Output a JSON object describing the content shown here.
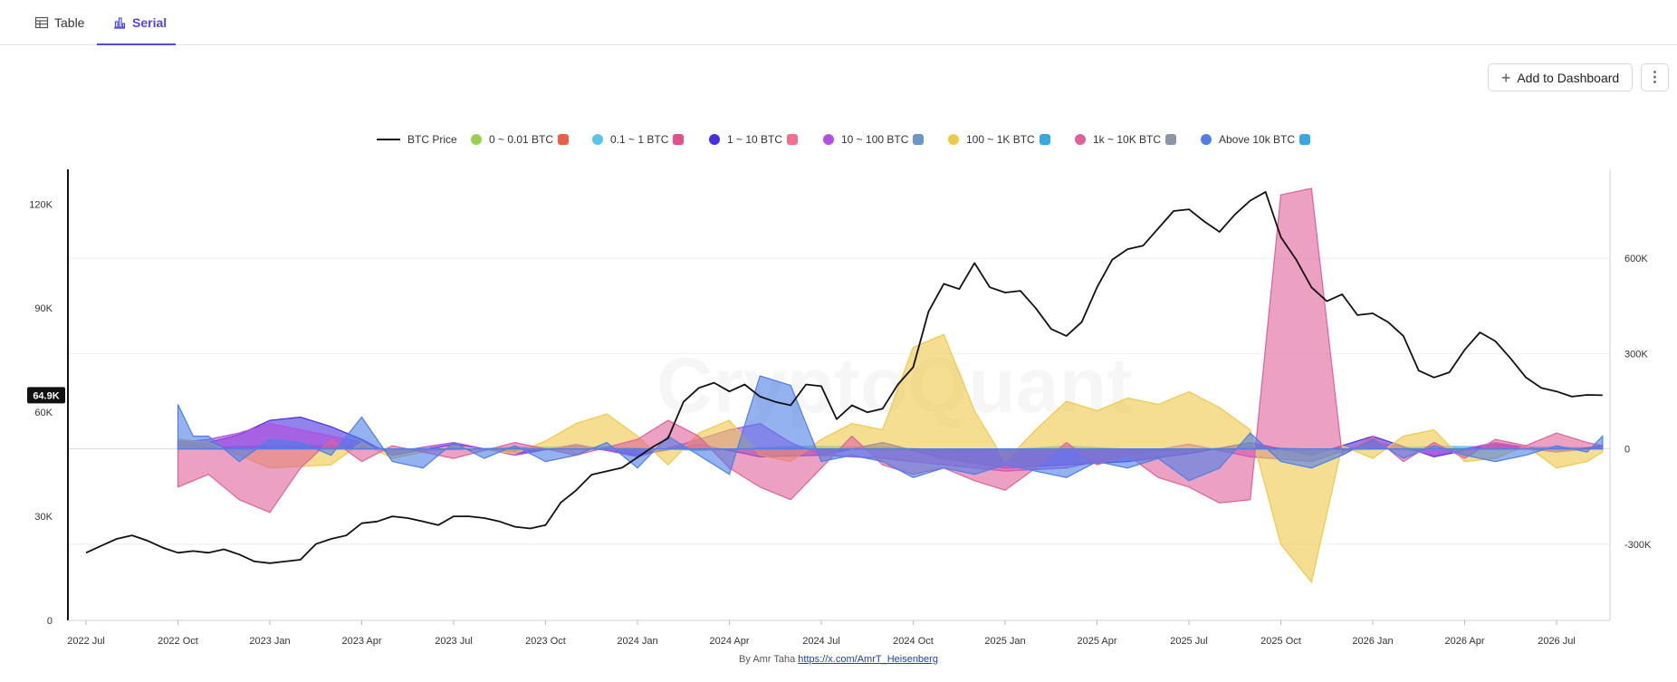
{
  "tabs": [
    {
      "label": "Table",
      "active": false
    },
    {
      "label": "Serial",
      "active": true
    }
  ],
  "toolbar": {
    "add_label": "Add to Dashboard",
    "add_icon": "plus-icon",
    "more_icon": "more-vertical-icon"
  },
  "watermark": "CryptoQuant",
  "footer": {
    "prefix": "By Amr Taha",
    "link": "https://x.com/AmrT_Heisenberg"
  },
  "chart_data": {
    "type": "area",
    "legend_position": "top-center",
    "current_price_label": "64.9K",
    "x_tick_labels": [
      "2022 Jul",
      "2022 Oct",
      "2023 Jan",
      "2023 Apr",
      "2023 Jul",
      "2023 Oct",
      "2024 Jan",
      "2024 Apr",
      "2024 Jul",
      "2024 Oct",
      "2025 Jan",
      "2025 Apr",
      "2025 Jul",
      "2025 Oct",
      "2026 Jan",
      "2026 Apr",
      "2026 Jul"
    ],
    "y_left": {
      "range": [
        0,
        130000
      ],
      "ticks": [
        0,
        30000,
        60000,
        90000,
        120000
      ],
      "tick_labels": [
        "0",
        "30K",
        "60K",
        "90K",
        "120K"
      ]
    },
    "y_right": {
      "range": [
        -540000,
        880000
      ],
      "ticks": [
        -300000,
        0,
        300000,
        600000
      ],
      "tick_labels": [
        "-300K",
        "0",
        "300K",
        "600K"
      ]
    },
    "series": [
      {
        "name": "BTC Price",
        "kind": "line",
        "axis": "left",
        "color": "#111111",
        "x": [
          0,
          0.5,
          1,
          1.5,
          2,
          2.5,
          3,
          3.5,
          4,
          4.5,
          5,
          5.5,
          6,
          6.5,
          7,
          7.5,
          8,
          8.5,
          9,
          9.5,
          10,
          10.5,
          11,
          11.5,
          12,
          12.5,
          13,
          13.5,
          14,
          14.5,
          15,
          15.5,
          16,
          16.5,
          17,
          17.5,
          18,
          18.5,
          19,
          19.5,
          20,
          20.5,
          21,
          21.5,
          22,
          22.5,
          23,
          23.5,
          24,
          24.5,
          25,
          25.5,
          26,
          26.5,
          27,
          27.5,
          28,
          28.5,
          29,
          29.5,
          30,
          30.5,
          31,
          31.5,
          32,
          32.5,
          33,
          33.5,
          34,
          34.5,
          35,
          35.5,
          36,
          36.5,
          37,
          37.5,
          38,
          38.5,
          39,
          39.5,
          40,
          40.5,
          41,
          41.5,
          42,
          42.5,
          43,
          43.5,
          44,
          44.5,
          45,
          45.5,
          46,
          46.5,
          47,
          47.5,
          48,
          48.5,
          49,
          49.5
        ],
        "values": [
          19500,
          21500,
          23500,
          24500,
          23000,
          21000,
          19500,
          20000,
          19500,
          20500,
          19000,
          17000,
          16500,
          17000,
          17500,
          22000,
          23500,
          24500,
          28000,
          28500,
          30000,
          29500,
          28500,
          27500,
          30000,
          30000,
          29500,
          28500,
          27000,
          26500,
          27500,
          34000,
          37500,
          42000,
          43000,
          44000,
          47000,
          50000,
          52500,
          63000,
          67000,
          68500,
          66000,
          68000,
          64500,
          63000,
          62000,
          68000,
          67500,
          58000,
          62000,
          60000,
          61000,
          68000,
          73000,
          89000,
          97000,
          95500,
          103000,
          96000,
          94500,
          95000,
          90000,
          84000,
          82000,
          86000,
          96000,
          104000,
          107000,
          108000,
          113000,
          118000,
          118500,
          115000,
          112000,
          117000,
          121000,
          123500,
          110500,
          104000,
          96000,
          92000,
          94000,
          88000,
          88500,
          86000,
          82000,
          72000,
          70000,
          71500,
          78000,
          83000,
          80500,
          75500,
          70000,
          67000,
          66000,
          64500,
          65000,
          64900
        ]
      },
      {
        "name": "0 ~ 0.01 BTC",
        "kind": "area",
        "axis": "right",
        "color": "#9bd04e",
        "icon": "shrimp-icon",
        "x": [
          3,
          5,
          8,
          11,
          14,
          17,
          20,
          23,
          26,
          29,
          32,
          35,
          38,
          41,
          44,
          47,
          49.5
        ],
        "values": [
          0,
          4000,
          6000,
          -4000,
          3000,
          5000,
          -3000,
          4000,
          2000,
          -5000,
          4000,
          -3000,
          5000,
          -4000,
          3000,
          2000,
          1000
        ]
      },
      {
        "name": "0.1 ~ 1 BTC",
        "kind": "area",
        "axis": "right",
        "color": "#5ec2e6",
        "icon": "crab-icon",
        "x": [
          3,
          5,
          8,
          11,
          14,
          17,
          20,
          23,
          26,
          29,
          32,
          35,
          38,
          41,
          44,
          47,
          49.5
        ],
        "values": [
          0,
          8000,
          10000,
          -6000,
          5000,
          6000,
          -5000,
          8000,
          6000,
          -8000,
          9000,
          -6000,
          7000,
          -5000,
          8000,
          6000,
          3000
        ]
      },
      {
        "name": "1 ~ 10 BTC",
        "kind": "area",
        "axis": "right",
        "color": "#4a2fe0",
        "icon": "octopus-icon",
        "x": [
          3,
          4,
          5,
          6,
          7,
          8,
          9,
          10,
          12,
          14,
          16,
          18,
          20,
          22,
          24,
          26,
          28,
          30,
          32,
          34,
          36,
          38,
          40,
          42,
          44,
          46,
          48,
          49.5
        ],
        "values": [
          30000,
          20000,
          45000,
          90000,
          100000,
          70000,
          30000,
          -20000,
          15000,
          -15000,
          10000,
          -20000,
          15000,
          -25000,
          -20000,
          20000,
          -30000,
          -60000,
          -50000,
          -40000,
          -15000,
          20000,
          -20000,
          40000,
          -25000,
          15000,
          -10000,
          10000
        ]
      },
      {
        "name": "10 ~ 100 BTC",
        "kind": "area",
        "axis": "right",
        "color": "#b24fe0",
        "icon": "fish-icon",
        "x": [
          3,
          4,
          5,
          6,
          7,
          8,
          9,
          10,
          12,
          14,
          16,
          18,
          20,
          21,
          22,
          23,
          24,
          26,
          28,
          30,
          32,
          34,
          36,
          38,
          40,
          42,
          44,
          46,
          48,
          49.5
        ],
        "values": [
          20000,
          30000,
          50000,
          80000,
          60000,
          40000,
          20000,
          -10000,
          20000,
          -20000,
          15000,
          -25000,
          30000,
          60000,
          80000,
          20000,
          -20000,
          -30000,
          -50000,
          -70000,
          -60000,
          -20000,
          15000,
          -25000,
          -40000,
          25000,
          -20000,
          20000,
          -10000,
          5000
        ]
      },
      {
        "name": "100 ~ 1K BTC",
        "kind": "area",
        "axis": "right",
        "color": "#efc84a",
        "icon": "dolphin-icon",
        "x": [
          3,
          4,
          6,
          8,
          9,
          10,
          12,
          14,
          15,
          16,
          17,
          18,
          19,
          20,
          21,
          22,
          23,
          24,
          25,
          26,
          27,
          28,
          29,
          30,
          31,
          32,
          33,
          34,
          35,
          36,
          37,
          38,
          39,
          40,
          41,
          42,
          43,
          44,
          45,
          46,
          47,
          48,
          49,
          49.5
        ],
        "values": [
          30000,
          20000,
          -60000,
          -50000,
          20000,
          -30000,
          10000,
          -15000,
          25000,
          80000,
          110000,
          40000,
          -50000,
          50000,
          90000,
          -20000,
          -40000,
          30000,
          80000,
          60000,
          320000,
          360000,
          120000,
          -40000,
          60000,
          150000,
          120000,
          160000,
          140000,
          180000,
          130000,
          60000,
          -300000,
          -420000,
          10000,
          -30000,
          40000,
          60000,
          -40000,
          -30000,
          10000,
          -60000,
          -40000,
          -10000
        ]
      },
      {
        "name": "1k ~ 10K BTC",
        "kind": "area",
        "axis": "right",
        "color": "#e0609a",
        "icon": "shark-icon",
        "x": [
          3,
          4,
          5,
          6,
          7,
          8,
          9,
          10,
          12,
          14,
          16,
          18,
          19,
          20,
          21,
          22,
          23,
          24,
          25,
          26,
          27,
          28,
          29,
          30,
          31,
          32,
          33,
          34,
          35,
          36,
          37,
          38,
          39,
          40,
          41,
          42,
          43,
          44,
          45,
          46,
          47,
          48,
          49,
          49.5
        ],
        "values": [
          -120000,
          -80000,
          -160000,
          -200000,
          -60000,
          30000,
          -40000,
          10000,
          -30000,
          20000,
          -20000,
          30000,
          90000,
          40000,
          -60000,
          -120000,
          -160000,
          -60000,
          40000,
          -50000,
          -80000,
          -60000,
          -100000,
          -130000,
          -60000,
          20000,
          -50000,
          -20000,
          -90000,
          -120000,
          -170000,
          -160000,
          800000,
          820000,
          -20000,
          40000,
          -40000,
          20000,
          -30000,
          30000,
          10000,
          50000,
          20000,
          10000
        ]
      },
      {
        "name": "Above 10k BTC",
        "kind": "area",
        "axis": "right",
        "color": "#4d7fe6",
        "icon": "whale-icon",
        "x": [
          3,
          3.5,
          4,
          5,
          6,
          7,
          8,
          9,
          10,
          11,
          12,
          13,
          14,
          15,
          16,
          17,
          18,
          19,
          20,
          21,
          22,
          23,
          24,
          25,
          26,
          27,
          28,
          29,
          30,
          31,
          32,
          33,
          34,
          35,
          36,
          37,
          38,
          39,
          40,
          41,
          42,
          43,
          44,
          45,
          46,
          47,
          48,
          49,
          49.5
        ],
        "values": [
          140000,
          40000,
          40000,
          -40000,
          30000,
          20000,
          -20000,
          100000,
          -40000,
          -60000,
          20000,
          -30000,
          10000,
          -40000,
          -20000,
          20000,
          -60000,
          40000,
          -20000,
          -80000,
          230000,
          200000,
          -40000,
          -20000,
          -40000,
          -90000,
          -60000,
          -80000,
          -50000,
          -70000,
          -90000,
          -40000,
          -60000,
          -30000,
          -100000,
          -60000,
          50000,
          -40000,
          -60000,
          -20000,
          30000,
          -30000,
          10000,
          -20000,
          -40000,
          -20000,
          10000,
          -10000,
          40000
        ]
      }
    ]
  }
}
